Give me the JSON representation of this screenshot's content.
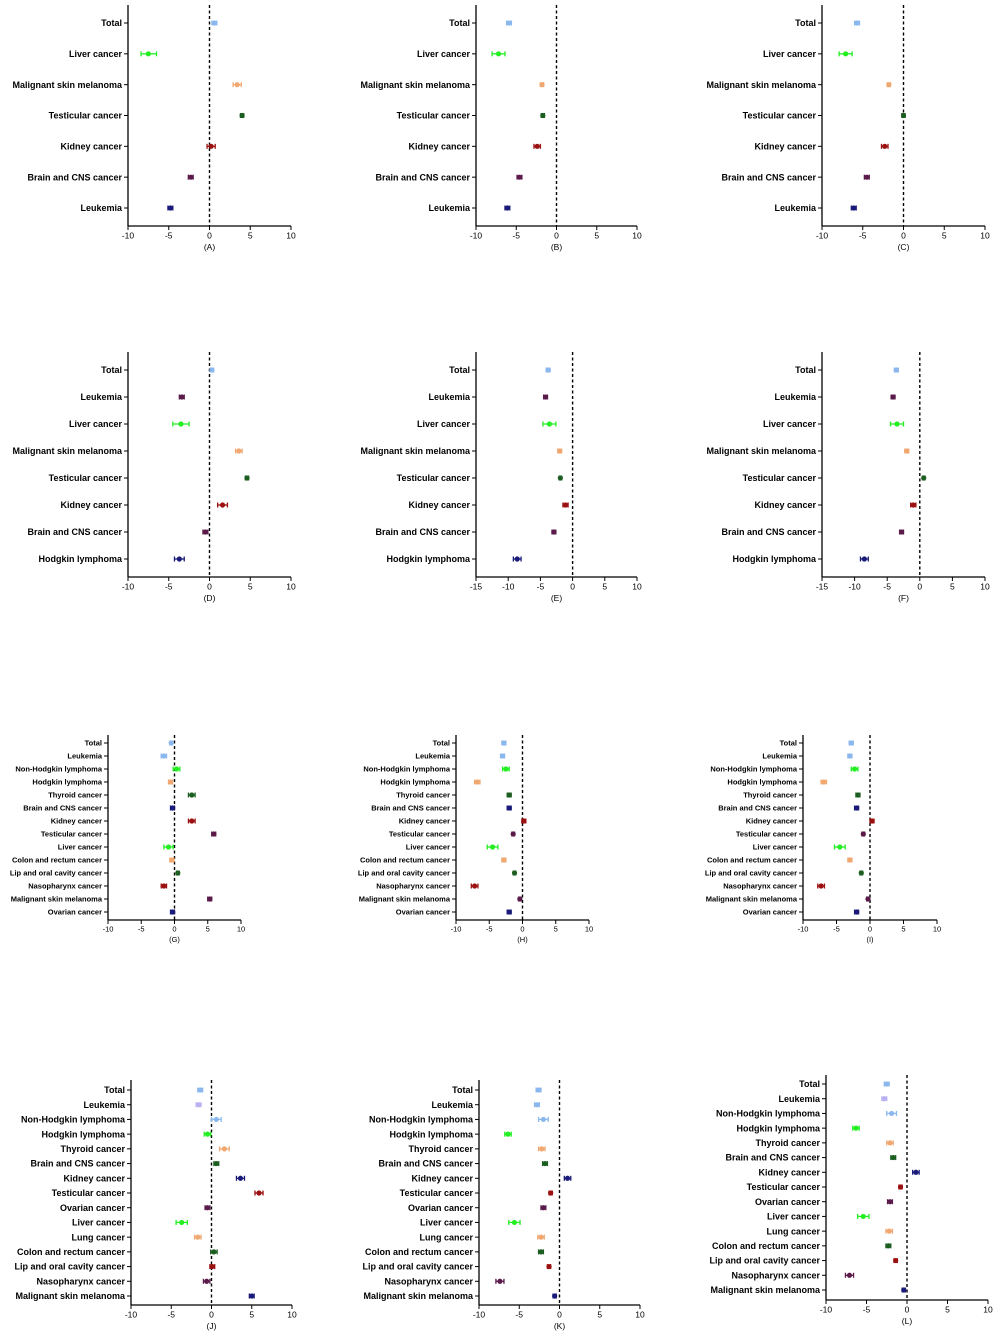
{
  "chart_data": [
    {
      "type": "scatter",
      "panel": "(A)",
      "xlim": [
        -10,
        10
      ],
      "xticks": [
        -10,
        -5,
        0,
        5,
        10
      ],
      "categories": [
        "Total",
        "Liver cancer",
        "Malignant skin melanoma",
        "Testicular cancer",
        "Kidney cancer",
        "Brain and CNS cancer",
        "Leukemia"
      ],
      "values": [
        0.6,
        -7.5,
        3.4,
        4.0,
        0.2,
        -2.3,
        -4.8
      ],
      "ci_low": [
        0.3,
        -8.4,
        2.9,
        3.8,
        -0.3,
        -2.6,
        -5.1
      ],
      "ci_high": [
        0.9,
        -6.5,
        3.9,
        4.2,
        0.7,
        -2.0,
        -4.5
      ],
      "colors": [
        "#8ab8ee",
        "#22ee22",
        "#f0a870",
        "#1b5e20",
        "#9b1010",
        "#5a1a4a",
        "#1a1a7a"
      ]
    },
    {
      "type": "scatter",
      "panel": "(B)",
      "xlim": [
        -10,
        10
      ],
      "xticks": [
        -10,
        -5,
        0,
        5,
        10
      ],
      "categories": [
        "Total",
        "Liver cancer",
        "Malignant skin melanoma",
        "Testicular cancer",
        "Kidney cancer",
        "Brain and CNS cancer",
        "Leukemia"
      ],
      "values": [
        -5.9,
        -7.2,
        -1.8,
        -1.7,
        -2.4,
        -4.6,
        -6.1
      ],
      "ci_low": [
        -6.2,
        -8.0,
        -2.0,
        -1.9,
        -2.8,
        -4.9,
        -6.4
      ],
      "ci_high": [
        -5.6,
        -6.4,
        -1.6,
        -1.5,
        -2.0,
        -4.3,
        -5.8
      ],
      "colors": [
        "#8ab8ee",
        "#22ee22",
        "#f0a870",
        "#1b5e20",
        "#9b1010",
        "#5a1a4a",
        "#1a1a7a"
      ]
    },
    {
      "type": "scatter",
      "panel": "(C)",
      "xlim": [
        -10,
        10
      ],
      "xticks": [
        -10,
        -5,
        0,
        5,
        10
      ],
      "categories": [
        "Total",
        "Liver cancer",
        "Malignant skin melanoma",
        "Testicular cancer",
        "Kidney cancer",
        "Brain and CNS cancer",
        "Leukemia"
      ],
      "values": [
        -5.7,
        -7.1,
        -1.8,
        0.0,
        -2.3,
        -4.5,
        -6.1
      ],
      "ci_low": [
        -6.0,
        -7.9,
        -2.0,
        -0.2,
        -2.7,
        -4.8,
        -6.4
      ],
      "ci_high": [
        -5.4,
        -6.3,
        -1.6,
        0.2,
        -1.9,
        -4.2,
        -5.8
      ],
      "colors": [
        "#8ab8ee",
        "#22ee22",
        "#f0a870",
        "#1b5e20",
        "#9b1010",
        "#5a1a4a",
        "#1a1a7a"
      ]
    },
    {
      "type": "scatter",
      "panel": "(D)",
      "xlim": [
        -10,
        10
      ],
      "xticks": [
        -10,
        -5,
        0,
        5,
        10
      ],
      "categories": [
        "Total",
        "Leukemia",
        "Liver cancer",
        "Malignant skin melanoma",
        "Testicular cancer",
        "Kidney cancer",
        "Brain and CNS cancer",
        "Hodgkin lymphoma"
      ],
      "values": [
        0.3,
        -3.4,
        -3.5,
        3.6,
        4.6,
        1.6,
        -0.5,
        -3.7
      ],
      "ci_low": [
        0.1,
        -3.7,
        -4.5,
        3.2,
        4.4,
        1.0,
        -0.8,
        -4.3
      ],
      "ci_high": [
        0.5,
        -3.1,
        -2.5,
        4.0,
        4.8,
        2.2,
        -0.2,
        -3.1
      ],
      "colors": [
        "#8ab8ee",
        "#5a1a4a",
        "#22ee22",
        "#f0a870",
        "#1b5e20",
        "#9b1010",
        "#5a1a4a",
        "#1a1a7a"
      ]
    },
    {
      "type": "scatter",
      "panel": "(E)",
      "xlim": [
        -15,
        10
      ],
      "xticks": [
        -15,
        -10,
        -5,
        0,
        5,
        10
      ],
      "categories": [
        "Total",
        "Leukemia",
        "Liver cancer",
        "Malignant skin melanoma",
        "Testicular cancer",
        "Kidney cancer",
        "Brain and CNS cancer",
        "Hodgkin lymphoma"
      ],
      "values": [
        -3.8,
        -4.2,
        -3.6,
        -2.0,
        -1.9,
        -1.1,
        -2.9,
        -8.6
      ],
      "ci_low": [
        -4.1,
        -4.5,
        -4.6,
        -2.3,
        -2.1,
        -1.5,
        -3.2,
        -9.2
      ],
      "ci_high": [
        -3.5,
        -3.9,
        -2.6,
        -1.7,
        -1.7,
        -0.7,
        -2.6,
        -8.0
      ],
      "colors": [
        "#8ab8ee",
        "#5a1a4a",
        "#22ee22",
        "#f0a870",
        "#1b5e20",
        "#9b1010",
        "#5a1a4a",
        "#1a1a7a"
      ]
    },
    {
      "type": "scatter",
      "panel": "(F)",
      "xlim": [
        -15,
        10
      ],
      "xticks": [
        -15,
        -10,
        -5,
        0,
        5,
        10
      ],
      "categories": [
        "Total",
        "Leukemia",
        "Liver cancer",
        "Malignant skin melanoma",
        "Testicular cancer",
        "Kidney cancer",
        "Brain and CNS cancer",
        "Hodgkin lymphoma"
      ],
      "values": [
        -3.6,
        -4.1,
        -3.5,
        -2.0,
        0.6,
        -1.0,
        -2.8,
        -8.5
      ],
      "ci_low": [
        -3.9,
        -4.4,
        -4.5,
        -2.3,
        0.4,
        -1.4,
        -3.1,
        -9.1
      ],
      "ci_high": [
        -3.3,
        -3.8,
        -2.5,
        -1.7,
        0.8,
        -0.6,
        -2.5,
        -7.9
      ],
      "colors": [
        "#8ab8ee",
        "#5a1a4a",
        "#22ee22",
        "#f0a870",
        "#1b5e20",
        "#9b1010",
        "#5a1a4a",
        "#1a1a7a"
      ]
    },
    {
      "type": "scatter",
      "panel": "(G)",
      "xlim": [
        -10,
        10
      ],
      "xticks": [
        -10,
        -5,
        0,
        5,
        10
      ],
      "categories": [
        "Total",
        "Leukemia",
        "Non-Hodgkin lymphoma",
        "Hodgkin lymphoma",
        "Thyroid cancer",
        "Brain and CNS cancer",
        "Kidney cancer",
        "Testicular cancer",
        "Liver cancer",
        "Colon and rectum cancer",
        "Lip and oral cavity cancer",
        "Nasopharynx cancer",
        "Malignant skin melanoma",
        "Ovarian cancer"
      ],
      "values": [
        -0.5,
        -1.6,
        0.3,
        -0.6,
        2.6,
        -0.3,
        2.6,
        5.9,
        -0.9,
        -0.4,
        0.5,
        -1.6,
        5.3,
        -0.3
      ],
      "ci_low": [
        -0.7,
        -2.0,
        -0.2,
        -0.9,
        2.1,
        -0.6,
        2.1,
        5.6,
        -1.6,
        -0.7,
        0.3,
        -2.0,
        5.0,
        -0.6
      ],
      "ci_high": [
        -0.3,
        -1.2,
        0.8,
        -0.3,
        3.1,
        0.0,
        3.1,
        6.2,
        -0.2,
        -0.1,
        0.7,
        -1.2,
        5.6,
        0.0
      ],
      "colors": [
        "#8ab8ee",
        "#8ab8ee",
        "#22ee22",
        "#f0a870",
        "#1b5e20",
        "#1a1a7a",
        "#9b1010",
        "#5a1a4a",
        "#22ee22",
        "#f0a870",
        "#1b5e20",
        "#9b1010",
        "#5a1a4a",
        "#1a1a7a"
      ]
    },
    {
      "type": "scatter",
      "panel": "(H)",
      "xlim": [
        -10,
        10
      ],
      "xticks": [
        -10,
        -5,
        0,
        5,
        10
      ],
      "categories": [
        "Total",
        "Leukemia",
        "Non-Hodgkin lymphoma",
        "Hodgkin lymphoma",
        "Thyroid cancer",
        "Brain and CNS cancer",
        "Kidney cancer",
        "Testicular cancer",
        "Liver cancer",
        "Colon and rectum cancer",
        "Lip and oral cavity cancer",
        "Nasopharynx cancer",
        "Malignant skin melanoma",
        "Ovarian cancer"
      ],
      "values": [
        -2.8,
        -3.0,
        -2.5,
        -6.8,
        -2.0,
        -2.0,
        0.2,
        -1.4,
        -4.5,
        -2.8,
        -1.2,
        -7.2,
        -0.4,
        -2.0
      ],
      "ci_low": [
        -3.1,
        -3.3,
        -3.0,
        -7.2,
        -2.3,
        -2.3,
        -0.1,
        -1.6,
        -5.3,
        -3.1,
        -1.4,
        -7.7,
        -0.6,
        -2.3
      ],
      "ci_high": [
        -2.5,
        -2.7,
        -2.0,
        -6.4,
        -1.7,
        -1.7,
        0.5,
        -1.2,
        -3.7,
        -2.5,
        -1.0,
        -6.7,
        -0.2,
        -1.7
      ],
      "colors": [
        "#8ab8ee",
        "#8ab8ee",
        "#22ee22",
        "#f0a870",
        "#1b5e20",
        "#1a1a7a",
        "#9b1010",
        "#5a1a4a",
        "#22ee22",
        "#f0a870",
        "#1b5e20",
        "#9b1010",
        "#5a1a4a",
        "#1a1a7a"
      ]
    },
    {
      "type": "scatter",
      "panel": "(I)",
      "xlim": [
        -10,
        10
      ],
      "xticks": [
        -10,
        -5,
        0,
        5,
        10
      ],
      "categories": [
        "Total",
        "Leukemia",
        "Non-Hodgkin lymphoma",
        "Hodgkin lymphoma",
        "Thyroid cancer",
        "Brain and CNS cancer",
        "Kidney cancer",
        "Testicular cancer",
        "Liver cancer",
        "Colon and rectum cancer",
        "Lip and oral cavity cancer",
        "Nasopharynx cancer",
        "Malignant skin melanoma",
        "Ovarian cancer"
      ],
      "values": [
        -2.8,
        -3.0,
        -2.3,
        -6.9,
        -1.8,
        -2.0,
        0.3,
        -1.0,
        -4.5,
        -3.0,
        -1.3,
        -7.3,
        -0.3,
        -2.0
      ],
      "ci_low": [
        -3.1,
        -3.3,
        -2.8,
        -7.3,
        -2.1,
        -2.3,
        0.0,
        -1.2,
        -5.3,
        -3.3,
        -1.5,
        -7.8,
        -0.5,
        -2.3
      ],
      "ci_high": [
        -2.5,
        -2.7,
        -1.8,
        -6.5,
        -1.5,
        -1.7,
        0.6,
        -0.8,
        -3.7,
        -2.7,
        -1.1,
        -6.8,
        -0.1,
        -1.7
      ],
      "colors": [
        "#8ab8ee",
        "#8ab8ee",
        "#22ee22",
        "#f0a870",
        "#1b5e20",
        "#1a1a7a",
        "#9b1010",
        "#5a1a4a",
        "#22ee22",
        "#f0a870",
        "#1b5e20",
        "#9b1010",
        "#5a1a4a",
        "#1a1a7a"
      ]
    },
    {
      "type": "scatter",
      "panel": "(J)",
      "xlim": [
        -10,
        10
      ],
      "xticks": [
        -10,
        -5,
        0,
        5,
        10
      ],
      "categories": [
        "Total",
        "Leukemia",
        "Non-Hodgkin lymphoma",
        "Hodgkin lymphoma",
        "Thyroid cancer",
        "Brain and CNS cancer",
        "Kidney cancer",
        "Testicular cancer",
        "Ovarian cancer",
        "Liver cancer",
        "Lung cancer",
        "Colon and rectum cancer",
        "Lip and oral cavity cancer",
        "Nasopharynx cancer",
        "Malignant skin melanoma"
      ],
      "values": [
        -1.4,
        -1.6,
        0.6,
        -0.5,
        1.6,
        0.6,
        3.6,
        5.9,
        -0.5,
        -3.7,
        -1.7,
        0.3,
        0.1,
        -0.6,
        5.0
      ],
      "ci_low": [
        -1.7,
        -1.9,
        0.0,
        -0.9,
        1.0,
        0.3,
        3.1,
        5.4,
        -0.8,
        -4.4,
        -2.1,
        -0.1,
        -0.2,
        -1.0,
        4.7
      ],
      "ci_high": [
        -1.1,
        -1.3,
        1.2,
        -0.1,
        2.2,
        0.9,
        4.1,
        6.4,
        -0.2,
        -3.0,
        -1.3,
        0.7,
        0.4,
        -0.2,
        5.3
      ],
      "colors": [
        "#8ab8ee",
        "#b8b0f0",
        "#8ab8ee",
        "#22ee22",
        "#f0a870",
        "#1b5e20",
        "#1a1a7a",
        "#9b1010",
        "#5a1a4a",
        "#22ee22",
        "#f0a870",
        "#1b5e20",
        "#9b1010",
        "#5a1a4a",
        "#1a1a7a"
      ]
    },
    {
      "type": "scatter",
      "panel": "(K)",
      "xlim": [
        -10,
        10
      ],
      "xticks": [
        -10,
        -5,
        0,
        5,
        10
      ],
      "categories": [
        "Total",
        "Leukemia",
        "Non-Hodgkin lymphoma",
        "Hodgkin lymphoma",
        "Thyroid cancer",
        "Brain and CNS cancer",
        "Kidney cancer",
        "Testicular cancer",
        "Ovarian cancer",
        "Liver cancer",
        "Lung cancer",
        "Colon and rectum cancer",
        "Lip and oral cavity cancer",
        "Nasopharynx cancer",
        "Malignant skin melanoma"
      ],
      "values": [
        -2.6,
        -2.8,
        -2.0,
        -6.4,
        -2.2,
        -1.8,
        1.0,
        -1.1,
        -2.0,
        -5.6,
        -2.3,
        -2.3,
        -1.3,
        -7.4,
        -0.6
      ],
      "ci_low": [
        -2.9,
        -3.1,
        -2.6,
        -6.8,
        -2.6,
        -2.1,
        0.6,
        -1.3,
        -2.3,
        -6.3,
        -2.7,
        -2.6,
        -1.5,
        -7.9,
        -0.8
      ],
      "ci_high": [
        -2.3,
        -2.5,
        -1.4,
        -6.0,
        -1.8,
        -1.5,
        1.4,
        -0.9,
        -1.7,
        -4.9,
        -1.9,
        -2.0,
        -1.1,
        -6.9,
        -0.4
      ],
      "colors": [
        "#8ab8ee",
        "#8ab8ee",
        "#8ab8ee",
        "#22ee22",
        "#f0a870",
        "#1b5e20",
        "#1a1a7a",
        "#9b1010",
        "#5a1a4a",
        "#22ee22",
        "#f0a870",
        "#1b5e20",
        "#9b1010",
        "#5a1a4a",
        "#1a1a7a"
      ]
    },
    {
      "type": "scatter",
      "panel": "(L)",
      "xlim": [
        -10,
        10
      ],
      "xticks": [
        -10,
        -5,
        0,
        5,
        10
      ],
      "categories": [
        "Total",
        "Leukemia",
        "Non-Hodgkin lymphoma",
        "Hodgkin lymphoma",
        "Thyroid cancer",
        "Brain and CNS cancer",
        "Kidney cancer",
        "Testicular cancer",
        "Ovarian cancer",
        "Liver cancer",
        "Lung cancer",
        "Colon and rectum cancer",
        "Lip and oral cavity cancer",
        "Nasopharynx cancer",
        "Malignant skin melanoma"
      ],
      "values": [
        -2.5,
        -2.8,
        -1.9,
        -6.3,
        -2.1,
        -1.7,
        1.1,
        -0.8,
        -2.1,
        -5.4,
        -2.2,
        -2.3,
        -1.4,
        -7.1,
        -0.4
      ],
      "ci_low": [
        -2.8,
        -3.1,
        -2.5,
        -6.7,
        -2.5,
        -2.0,
        0.7,
        -1.0,
        -2.4,
        -6.1,
        -2.6,
        -2.6,
        -1.6,
        -7.6,
        -0.6
      ],
      "ci_high": [
        -2.2,
        -2.5,
        -1.3,
        -5.9,
        -1.7,
        -1.4,
        1.5,
        -0.6,
        -1.8,
        -4.7,
        -1.8,
        -2.0,
        -1.2,
        -6.6,
        -0.2
      ],
      "colors": [
        "#8ab8ee",
        "#b8b0f0",
        "#8ab8ee",
        "#22ee22",
        "#f0a870",
        "#1b5e20",
        "#1a1a7a",
        "#9b1010",
        "#5a1a4a",
        "#22ee22",
        "#f0a870",
        "#1b5e20",
        "#9b1010",
        "#5a1a4a",
        "#1a1a7a"
      ]
    }
  ]
}
